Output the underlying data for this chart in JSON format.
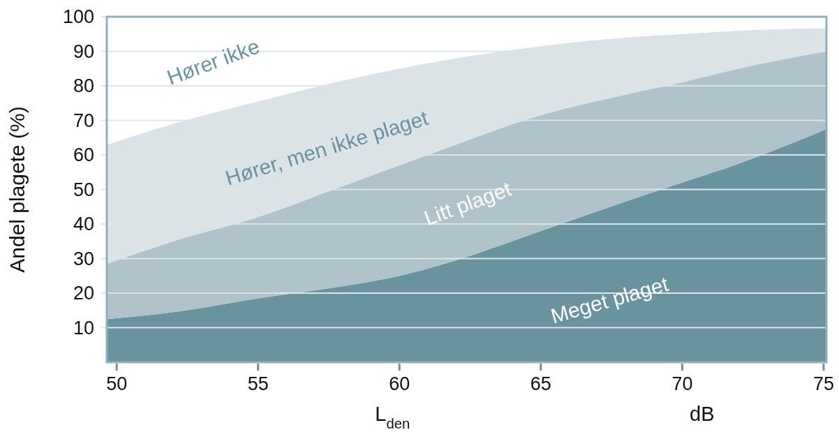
{
  "chart_data": {
    "type": "area",
    "stacked": true,
    "xlabel": "L$_{den}$",
    "ylabel": "Andel plagete (%)",
    "annotations": [
      "dB"
    ],
    "x": [
      49.65,
      52,
      55,
      58,
      60,
      62,
      65,
      68,
      70,
      72,
      75.1
    ],
    "xlim": [
      49.65,
      75.1
    ],
    "xticks": [
      50,
      55,
      60,
      65,
      70,
      75
    ],
    "ylim": [
      0,
      100
    ],
    "yticks": [
      10,
      20,
      30,
      40,
      50,
      60,
      70,
      80,
      90,
      100
    ],
    "grid": "y",
    "series": [
      {
        "name": "Meget plaget",
        "color": "#6a93a0",
        "values": [
          12.5,
          14.5,
          18.5,
          22,
          25,
          29.5,
          38,
          46.5,
          52,
          57.5,
          67.5
        ]
      },
      {
        "name": "Litt plaget",
        "color": "#b0c3ca",
        "values": [
          16,
          20.5,
          23.5,
          29,
          32,
          33.5,
          33.5,
          31,
          29,
          27.5,
          22.5
        ]
      },
      {
        "name": "Hører, men ikke plaget",
        "color": "#dce3e6",
        "values": [
          34.5,
          34,
          33.5,
          30.5,
          28,
          25,
          20,
          16.5,
          14,
          11,
          6.7
        ]
      },
      {
        "name": "Hører ikke",
        "color": "#ffffff",
        "values": [
          37,
          31,
          24.5,
          18.5,
          15,
          12,
          8.5,
          6,
          5,
          4,
          3.3
        ]
      }
    ]
  }
}
